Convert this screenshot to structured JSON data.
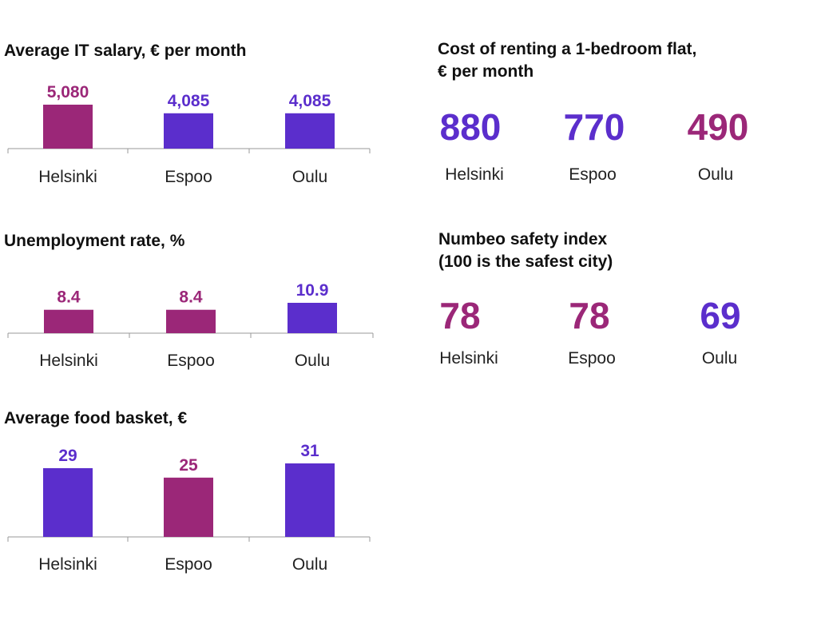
{
  "colors": {
    "magenta": "#9B2778",
    "purple": "#5B2ECC",
    "axis": "#999999"
  },
  "chart_data": [
    {
      "type": "bar",
      "title": "Average IT salary, € per month",
      "categories": [
        "Helsinki",
        "Espoo",
        "Oulu"
      ],
      "values": [
        5080,
        4085,
        4085
      ],
      "labels": [
        "5,080",
        "4,085",
        "4,085"
      ],
      "colors": [
        "magenta",
        "purple",
        "purple"
      ]
    },
    {
      "type": "bar",
      "title": "Unemployment rate, %",
      "categories": [
        "Helsinki",
        "Espoo",
        "Oulu"
      ],
      "values": [
        8.4,
        8.4,
        10.9
      ],
      "labels": [
        "8.4",
        "8.4",
        "10.9"
      ],
      "colors": [
        "magenta",
        "magenta",
        "purple"
      ]
    },
    {
      "type": "bar",
      "title": "Average food basket, €",
      "categories": [
        "Helsinki",
        "Espoo",
        "Oulu"
      ],
      "values": [
        29,
        25,
        31
      ],
      "labels": [
        "29",
        "25",
        "31"
      ],
      "colors": [
        "purple",
        "magenta",
        "purple"
      ]
    },
    {
      "type": "table",
      "title_lines": [
        "Cost of renting a 1-bedroom flat,",
        "€ per month"
      ],
      "categories": [
        "Helsinki",
        "Espoo",
        "Oulu"
      ],
      "values": [
        880,
        770,
        490
      ],
      "colors": [
        "purple",
        "purple",
        "magenta"
      ]
    },
    {
      "type": "table",
      "title_lines": [
        "Numbeo safety index",
        "(100 is the safest city)"
      ],
      "categories": [
        "Helsinki",
        "Espoo",
        "Oulu"
      ],
      "values": [
        78,
        78,
        69
      ],
      "colors": [
        "magenta",
        "magenta",
        "purple"
      ]
    }
  ]
}
